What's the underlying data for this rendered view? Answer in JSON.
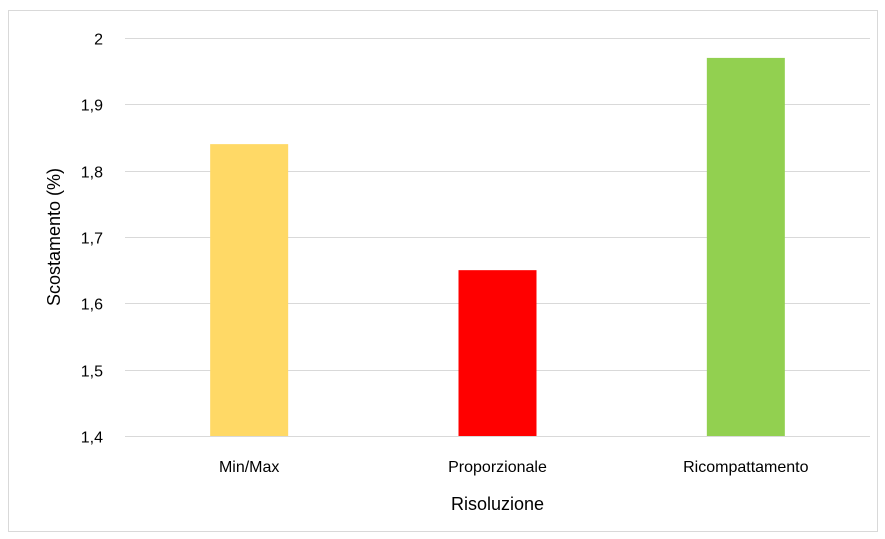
{
  "chart_data": {
    "type": "bar",
    "title": "",
    "xlabel": "Risoluzione",
    "ylabel": "Scostamento (%)",
    "categories": [
      "Min/Max",
      "Proporzionale",
      "Ricompattamento"
    ],
    "values": [
      1.84,
      1.65,
      1.97
    ],
    "colors": [
      "#FFD966",
      "#FF0000",
      "#92D050"
    ],
    "ylim": [
      1.4,
      2.0
    ],
    "yticks": [
      1.4,
      1.5,
      1.6,
      1.7,
      1.8,
      1.9,
      2.0
    ],
    "ytick_labels": [
      "1,4",
      "1,5",
      "1,6",
      "1,7",
      "1,8",
      "1,9",
      "2"
    ],
    "grid": true,
    "gridline_color": "#d9d9d9",
    "legend": "none"
  }
}
